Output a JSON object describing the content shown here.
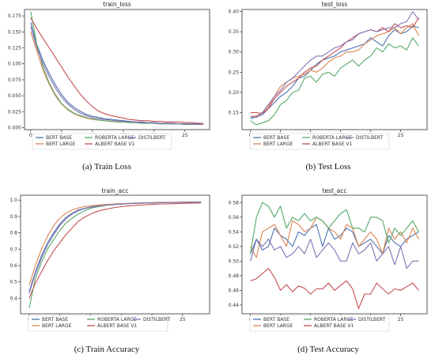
{
  "captions": {
    "a": "(a) Train Loss",
    "b": "(b) Test Loss",
    "c": "(c) Train Accuracy",
    "d": "(d) Test Accuracy"
  },
  "colors": {
    "BERT BASE": "#4c72b0",
    "BERT LARGE": "#dd8452",
    "ROBERTA LARGE": "#55a868",
    "ALBERT BASE V1": "#c44e52",
    "DISTILBERT": "#8172b3"
  },
  "chart_data": [
    {
      "id": "train_loss",
      "type": "line",
      "title": "train_loss",
      "xlabel": "",
      "ylabel": "",
      "xlim": [
        -1,
        29
      ],
      "ylim": [
        -0.003,
        0.185
      ],
      "xticks": [
        0,
        5,
        10,
        15,
        20,
        25
      ],
      "yticks": [
        0.0,
        0.025,
        0.05,
        0.075,
        0.1,
        0.125,
        0.15,
        0.175
      ],
      "ytick_labels": [
        "0.000",
        "0.025",
        "0.050",
        "0.075",
        "0.100",
        "0.125",
        "0.150",
        "0.175"
      ],
      "legend": {
        "position": "bottom",
        "columns": 3,
        "order": [
          "BERT BASE",
          "ROBERTA LARGE",
          "DISTILBERT",
          "BERT LARGE",
          "ALBERT BASE V1"
        ]
      },
      "grid": false,
      "x": [
        0,
        1,
        2,
        3,
        4,
        5,
        6,
        7,
        8,
        9,
        10,
        11,
        12,
        13,
        14,
        15,
        16,
        17,
        18,
        19,
        20,
        21,
        22,
        23,
        24,
        25,
        26,
        27,
        28
      ],
      "series": [
        {
          "name": "BERT BASE",
          "values": [
            0.165,
            0.13,
            0.105,
            0.085,
            0.067,
            0.052,
            0.04,
            0.032,
            0.026,
            0.021,
            0.018,
            0.016,
            0.014,
            0.013,
            0.012,
            0.011,
            0.01,
            0.009,
            0.009,
            0.008,
            0.008,
            0.007,
            0.007,
            0.007,
            0.006,
            0.006,
            0.006,
            0.006,
            0.005
          ]
        },
        {
          "name": "BERT LARGE",
          "values": [
            0.15,
            0.12,
            0.09,
            0.068,
            0.05,
            0.037,
            0.028,
            0.022,
            0.018,
            0.015,
            0.013,
            0.012,
            0.011,
            0.01,
            0.009,
            0.009,
            0.008,
            0.008,
            0.007,
            0.007,
            0.007,
            0.006,
            0.006,
            0.006,
            0.006,
            0.005,
            0.005,
            0.005,
            0.005
          ]
        },
        {
          "name": "ROBERTA LARGE",
          "values": [
            0.182,
            0.13,
            0.095,
            0.07,
            0.052,
            0.038,
            0.029,
            0.023,
            0.019,
            0.016,
            0.014,
            0.012,
            0.011,
            0.01,
            0.009,
            0.009,
            0.008,
            0.008,
            0.007,
            0.007,
            0.007,
            0.006,
            0.006,
            0.006,
            0.006,
            0.005,
            0.005,
            0.005,
            0.005
          ]
        },
        {
          "name": "ALBERT BASE V1",
          "values": [
            0.172,
            0.155,
            0.14,
            0.125,
            0.11,
            0.095,
            0.08,
            0.066,
            0.053,
            0.042,
            0.033,
            0.026,
            0.022,
            0.019,
            0.017,
            0.015,
            0.013,
            0.012,
            0.011,
            0.011,
            0.01,
            0.01,
            0.009,
            0.009,
            0.009,
            0.008,
            0.008,
            0.007,
            0.007
          ]
        },
        {
          "name": "DISTILBERT",
          "values": [
            0.158,
            0.125,
            0.1,
            0.08,
            0.062,
            0.048,
            0.037,
            0.029,
            0.023,
            0.019,
            0.016,
            0.014,
            0.013,
            0.012,
            0.011,
            0.01,
            0.009,
            0.009,
            0.008,
            0.008,
            0.007,
            0.007,
            0.007,
            0.006,
            0.006,
            0.006,
            0.006,
            0.005,
            0.005
          ]
        }
      ]
    },
    {
      "id": "test_loss",
      "type": "line",
      "title": "test_loss",
      "xlabel": "",
      "ylabel": "",
      "xlim": [
        -1.4,
        29.4
      ],
      "ylim": [
        0.108,
        0.405
      ],
      "xticks": [
        0,
        5,
        10,
        15,
        20,
        25
      ],
      "yticks": [
        0.15,
        0.2,
        0.25,
        0.3,
        0.35,
        0.4
      ],
      "ytick_labels": [
        "0.15",
        "0.20",
        "0.25",
        "0.30",
        "0.35",
        "0.40"
      ],
      "legend": {
        "position": "bottom",
        "columns": 3,
        "order": [
          "BERT BASE",
          "ROBERTA LARGE",
          "DISTILBERT",
          "BERT LARGE",
          "ALBERT BASE V1"
        ]
      },
      "grid": false,
      "x": [
        0,
        1,
        2,
        3,
        4,
        5,
        6,
        7,
        8,
        9,
        10,
        11,
        12,
        13,
        14,
        15,
        16,
        17,
        18,
        19,
        20,
        21,
        22,
        23,
        24,
        25,
        26,
        27,
        28
      ],
      "series": [
        {
          "name": "BERT BASE",
          "values": [
            0.135,
            0.14,
            0.145,
            0.16,
            0.175,
            0.19,
            0.2,
            0.215,
            0.235,
            0.24,
            0.255,
            0.27,
            0.28,
            0.285,
            0.29,
            0.3,
            0.305,
            0.31,
            0.315,
            0.32,
            0.335,
            0.325,
            0.315,
            0.34,
            0.355,
            0.345,
            0.35,
            0.365,
            0.36
          ]
        },
        {
          "name": "BERT LARGE",
          "values": [
            0.14,
            0.142,
            0.15,
            0.165,
            0.19,
            0.215,
            0.225,
            0.235,
            0.24,
            0.245,
            0.255,
            0.25,
            0.26,
            0.275,
            0.285,
            0.29,
            0.3,
            0.3,
            0.305,
            0.32,
            0.33,
            0.34,
            0.345,
            0.35,
            0.36,
            0.345,
            0.36,
            0.37,
            0.34
          ]
        },
        {
          "name": "ROBERTA LARGE",
          "values": [
            0.13,
            0.12,
            0.125,
            0.13,
            0.145,
            0.17,
            0.18,
            0.2,
            0.205,
            0.235,
            0.24,
            0.225,
            0.245,
            0.25,
            0.24,
            0.26,
            0.27,
            0.28,
            0.265,
            0.28,
            0.29,
            0.31,
            0.3,
            0.32,
            0.31,
            0.315,
            0.305,
            0.335,
            0.315
          ]
        },
        {
          "name": "ALBERT BASE V1",
          "values": [
            0.15,
            0.15,
            0.148,
            0.16,
            0.185,
            0.2,
            0.215,
            0.225,
            0.235,
            0.25,
            0.26,
            0.265,
            0.28,
            0.29,
            0.3,
            0.31,
            0.325,
            0.335,
            0.345,
            0.35,
            0.355,
            0.35,
            0.36,
            0.35,
            0.37,
            0.36,
            0.365,
            0.36,
            0.385
          ]
        },
        {
          "name": "DISTILBERT",
          "values": [
            0.14,
            0.138,
            0.15,
            0.17,
            0.19,
            0.205,
            0.225,
            0.235,
            0.25,
            0.265,
            0.28,
            0.29,
            0.29,
            0.3,
            0.31,
            0.315,
            0.325,
            0.33,
            0.345,
            0.35,
            0.355,
            0.35,
            0.355,
            0.36,
            0.36,
            0.37,
            0.375,
            0.4,
            0.38
          ]
        }
      ]
    },
    {
      "id": "train_acc",
      "type": "line",
      "title": "train_acc",
      "xlabel": "",
      "ylabel": "",
      "xlim": [
        -1.4,
        29.4
      ],
      "ylim": [
        0.305,
        1.03
      ],
      "xticks": [
        0,
        5,
        10,
        15,
        20,
        25
      ],
      "yticks": [
        0.4,
        0.5,
        0.6,
        0.7,
        0.8,
        0.9,
        1.0
      ],
      "ytick_labels": [
        "0.4",
        "0.5",
        "0.6",
        "0.7",
        "0.8",
        "0.9",
        "1.0"
      ],
      "legend": {
        "position": "bottom",
        "columns": 3,
        "order": [
          "BERT BASE",
          "ROBERTA LARGE",
          "DISTILBERT",
          "BERT LARGE",
          "ALBERT BASE V1"
        ]
      },
      "grid": false,
      "x": [
        0,
        1,
        2,
        3,
        4,
        5,
        6,
        7,
        8,
        9,
        10,
        11,
        12,
        13,
        14,
        15,
        16,
        17,
        18,
        19,
        20,
        21,
        22,
        23,
        24,
        25,
        26,
        27,
        28
      ],
      "series": [
        {
          "name": "BERT BASE",
          "values": [
            0.44,
            0.56,
            0.66,
            0.74,
            0.8,
            0.855,
            0.895,
            0.92,
            0.94,
            0.95,
            0.958,
            0.964,
            0.968,
            0.972,
            0.975,
            0.977,
            0.979,
            0.981,
            0.982,
            0.983,
            0.984,
            0.985,
            0.986,
            0.986,
            0.987,
            0.987,
            0.988,
            0.988,
            0.989
          ]
        },
        {
          "name": "BERT LARGE",
          "values": [
            0.48,
            0.6,
            0.7,
            0.78,
            0.845,
            0.89,
            0.92,
            0.94,
            0.952,
            0.96,
            0.965,
            0.969,
            0.972,
            0.975,
            0.977,
            0.979,
            0.98,
            0.982,
            0.983,
            0.984,
            0.985,
            0.986,
            0.986,
            0.987,
            0.987,
            0.988,
            0.988,
            0.989,
            0.99
          ]
        },
        {
          "name": "ROBERTA LARGE",
          "values": [
            0.34,
            0.52,
            0.62,
            0.7,
            0.76,
            0.815,
            0.86,
            0.89,
            0.915,
            0.935,
            0.95,
            0.958,
            0.965,
            0.97,
            0.973,
            0.976,
            0.978,
            0.98,
            0.981,
            0.982,
            0.983,
            0.984,
            0.985,
            0.986,
            0.986,
            0.987,
            0.987,
            0.988,
            0.988
          ]
        },
        {
          "name": "ALBERT BASE V1",
          "values": [
            0.4,
            0.49,
            0.56,
            0.63,
            0.69,
            0.74,
            0.79,
            0.83,
            0.87,
            0.895,
            0.915,
            0.93,
            0.94,
            0.948,
            0.955,
            0.96,
            0.964,
            0.967,
            0.97,
            0.972,
            0.974,
            0.976,
            0.977,
            0.978,
            0.979,
            0.98,
            0.981,
            0.982,
            0.983
          ]
        },
        {
          "name": "DISTILBERT",
          "values": [
            0.43,
            0.55,
            0.645,
            0.725,
            0.79,
            0.845,
            0.885,
            0.915,
            0.935,
            0.948,
            0.956,
            0.962,
            0.967,
            0.971,
            0.974,
            0.976,
            0.978,
            0.98,
            0.981,
            0.982,
            0.983,
            0.984,
            0.985,
            0.986,
            0.986,
            0.987,
            0.987,
            0.988,
            0.988
          ]
        }
      ]
    },
    {
      "id": "test_acc",
      "type": "line",
      "title": "test_acc",
      "xlabel": "",
      "ylabel": "",
      "xlim": [
        -1.4,
        29.4
      ],
      "ylim": [
        0.428,
        0.59
      ],
      "xticks": [
        0,
        5,
        10,
        15,
        20,
        25
      ],
      "yticks": [
        0.44,
        0.46,
        0.48,
        0.5,
        0.52,
        0.54,
        0.56,
        0.58
      ],
      "ytick_labels": [
        "0.44",
        "0.46",
        "0.48",
        "0.50",
        "0.52",
        "0.54",
        "0.56",
        "0.58"
      ],
      "legend": {
        "position": "bottom",
        "columns": 3,
        "order": [
          "BERT BASE",
          "ROBERTA LARGE",
          "DISTILBERT",
          "BERT LARGE",
          "ALBERT BASE V1"
        ]
      },
      "grid": false,
      "x": [
        0,
        1,
        2,
        3,
        4,
        5,
        6,
        7,
        8,
        9,
        10,
        11,
        12,
        13,
        14,
        15,
        16,
        17,
        18,
        19,
        20,
        21,
        22,
        23,
        24,
        25,
        26,
        27,
        28
      ],
      "series": [
        {
          "name": "BERT BASE",
          "values": [
            0.51,
            0.53,
            0.515,
            0.52,
            0.545,
            0.535,
            0.53,
            0.52,
            0.54,
            0.535,
            0.545,
            0.55,
            0.52,
            0.545,
            0.53,
            0.535,
            0.545,
            0.54,
            0.52,
            0.525,
            0.53,
            0.52,
            0.51,
            0.535,
            0.525,
            0.52,
            0.53,
            0.535,
            0.54
          ]
        },
        {
          "name": "BERT LARGE",
          "values": [
            0.52,
            0.505,
            0.54,
            0.545,
            0.55,
            0.535,
            0.52,
            0.555,
            0.55,
            0.54,
            0.545,
            0.56,
            0.555,
            0.545,
            0.54,
            0.53,
            0.55,
            0.545,
            0.52,
            0.53,
            0.54,
            0.53,
            0.51,
            0.545,
            0.53,
            0.54,
            0.525,
            0.545,
            0.53
          ]
        },
        {
          "name": "ROBERTA LARGE",
          "values": [
            0.51,
            0.56,
            0.58,
            0.575,
            0.56,
            0.575,
            0.545,
            0.56,
            0.555,
            0.565,
            0.555,
            0.56,
            0.555,
            0.545,
            0.555,
            0.565,
            0.57,
            0.545,
            0.545,
            0.54,
            0.56,
            0.56,
            0.555,
            0.525,
            0.545,
            0.535,
            0.545,
            0.555,
            0.54
          ]
        },
        {
          "name": "ALBERT BASE V1",
          "values": [
            0.473,
            0.476,
            0.483,
            0.49,
            0.478,
            0.46,
            0.468,
            0.458,
            0.466,
            0.463,
            0.455,
            0.462,
            0.462,
            0.47,
            0.46,
            0.467,
            0.473,
            0.462,
            0.435,
            0.455,
            0.455,
            0.47,
            0.462,
            0.455,
            0.462,
            0.46,
            0.465,
            0.47,
            0.46
          ]
        },
        {
          "name": "DISTILBERT",
          "values": [
            0.5,
            0.53,
            0.52,
            0.53,
            0.515,
            0.52,
            0.505,
            0.51,
            0.52,
            0.51,
            0.53,
            0.505,
            0.515,
            0.525,
            0.515,
            0.5,
            0.5,
            0.525,
            0.51,
            0.515,
            0.525,
            0.5,
            0.51,
            0.52,
            0.495,
            0.52,
            0.49,
            0.5,
            0.5
          ]
        }
      ]
    }
  ]
}
